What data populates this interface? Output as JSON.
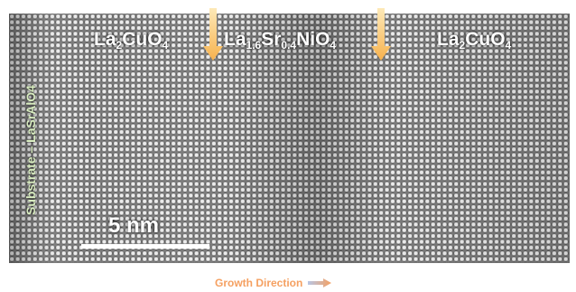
{
  "substrate_label": "Substrate – LaSrAlO4",
  "layers": [
    {
      "base1": "La",
      "sub1": "2",
      "base2": "CuO",
      "sub2": "4",
      "base3": "",
      "sub3": ""
    },
    {
      "base1": "La",
      "sub1": "1.6",
      "base2": "Sr",
      "sub2": "0.4",
      "base3": "NiO",
      "sub3": "4"
    },
    {
      "base1": "La",
      "sub1": "2",
      "base2": "CuO",
      "sub2": "4",
      "base3": "",
      "sub3": ""
    }
  ],
  "scale_bar": "5 nm",
  "growth_direction": "Growth Direction",
  "colors": {
    "arrow": "#fbc76a",
    "growth_text": "#f5a061"
  },
  "icons": {
    "interface_marker": "down-arrow-icon",
    "growth": "right-arrow-icon"
  }
}
